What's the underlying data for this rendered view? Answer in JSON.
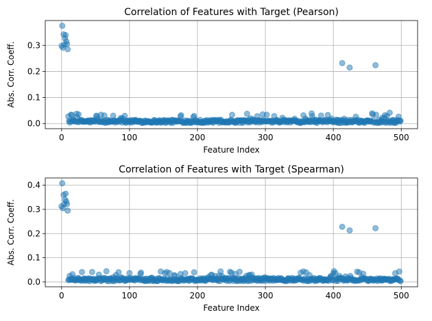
{
  "chart_data": [
    {
      "type": "scatter",
      "title": "Correlation of Features with Target (Pearson)",
      "xlabel": "Feature Index",
      "ylabel": "Abs. Corr. Coeff.",
      "xlim": [
        -24,
        524
      ],
      "ylim": [
        -0.019,
        0.395
      ],
      "xticks": [
        0,
        100,
        200,
        300,
        400,
        500
      ],
      "xtick_labels": [
        "0",
        "100",
        "200",
        "300",
        "400",
        "500"
      ],
      "yticks": [
        0.0,
        0.1,
        0.2,
        0.3
      ],
      "ytick_labels": [
        "0.0",
        "0.1",
        "0.2",
        "0.3"
      ],
      "grid": true,
      "marker_color": "#1f77b4",
      "marker_alpha": 0.5,
      "n_features": 500,
      "highlighted_points": [
        {
          "x": 0,
          "y": 0.298
        },
        {
          "x": 1,
          "y": 0.375
        },
        {
          "x": 2,
          "y": 0.291
        },
        {
          "x": 3,
          "y": 0.342
        },
        {
          "x": 4,
          "y": 0.303
        },
        {
          "x": 5,
          "y": 0.327
        },
        {
          "x": 6,
          "y": 0.339
        },
        {
          "x": 7,
          "y": 0.315
        },
        {
          "x": 8,
          "y": 0.305
        },
        {
          "x": 9,
          "y": 0.285
        },
        {
          "x": 413,
          "y": 0.232
        },
        {
          "x": 424,
          "y": 0.215
        },
        {
          "x": 462,
          "y": 0.224
        }
      ],
      "background_values": {
        "min": 0.0,
        "max": 0.043,
        "typical": 0.01
      }
    },
    {
      "type": "scatter",
      "title": "Correlation of Features with Target (Spearman)",
      "xlabel": "Feature Index",
      "ylabel": "Abs. Corr. Coeff.",
      "xlim": [
        -24,
        524
      ],
      "ylim": [
        -0.02,
        0.43
      ],
      "xticks": [
        0,
        100,
        200,
        300,
        400,
        500
      ],
      "xtick_labels": [
        "0",
        "100",
        "200",
        "300",
        "400",
        "500"
      ],
      "yticks": [
        0.0,
        0.1,
        0.2,
        0.3,
        0.4
      ],
      "ytick_labels": [
        "0.0",
        "0.1",
        "0.2",
        "0.3",
        "0.4"
      ],
      "grid": true,
      "marker_color": "#1f77b4",
      "marker_alpha": 0.5,
      "n_features": 500,
      "highlighted_points": [
        {
          "x": 0,
          "y": 0.313
        },
        {
          "x": 1,
          "y": 0.408
        },
        {
          "x": 2,
          "y": 0.305
        },
        {
          "x": 3,
          "y": 0.36
        },
        {
          "x": 4,
          "y": 0.322
        },
        {
          "x": 5,
          "y": 0.341
        },
        {
          "x": 6,
          "y": 0.365
        },
        {
          "x": 7,
          "y": 0.333
        },
        {
          "x": 8,
          "y": 0.322
        },
        {
          "x": 9,
          "y": 0.295
        },
        {
          "x": 413,
          "y": 0.228
        },
        {
          "x": 424,
          "y": 0.213
        },
        {
          "x": 462,
          "y": 0.222
        }
      ],
      "background_values": {
        "min": 0.0,
        "max": 0.045,
        "typical": 0.011
      }
    }
  ]
}
